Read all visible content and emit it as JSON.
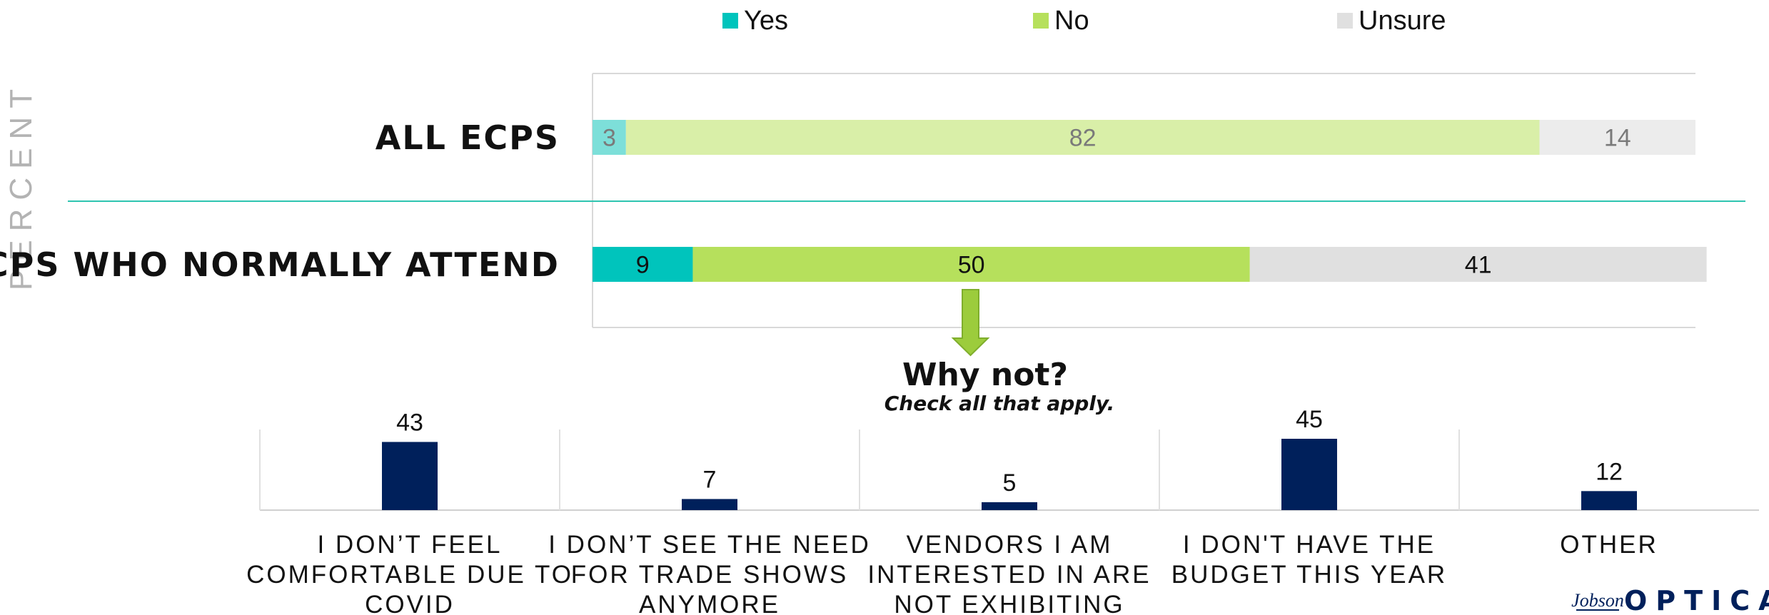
{
  "chart_data": [
    {
      "type": "bar",
      "orientation": "horizontal",
      "stacked": true,
      "axis_label": "PERCENT",
      "legend_position": "top",
      "categories": [
        "ALL ECPS",
        "ECPS WHO NORMALLY ATTEND"
      ],
      "series": [
        {
          "name": "Yes",
          "values": [
            3,
            9
          ]
        },
        {
          "name": "No",
          "values": [
            82,
            50
          ]
        },
        {
          "name": "Unsure",
          "values": [
            14,
            41
          ]
        }
      ]
    },
    {
      "type": "bar",
      "orientation": "vertical",
      "title": "Why not?",
      "subtitle": "Check all that apply.",
      "categories": [
        "I DON’T FEEL COMFORTABLE DUE TO COVID",
        "I DON’T SEE THE NEED FOR TRADE SHOWS ANYMORE",
        "VENDORS I AM INTERESTED IN ARE NOT EXHIBITING",
        "I DON'T HAVE THE BUDGET THIS YEAR",
        "OTHER"
      ],
      "category_lines": [
        [
          "I DON’T FEEL",
          "COMFORTABLE DUE TO",
          "COVID"
        ],
        [
          "I DON’T SEE THE NEED",
          "FOR TRADE SHOWS",
          "ANYMORE"
        ],
        [
          "VENDORS I AM",
          "INTERESTED IN ARE",
          "NOT EXHIBITING"
        ],
        [
          "I DON'T HAVE THE",
          "BUDGET THIS YEAR"
        ],
        [
          "OTHER"
        ]
      ],
      "values": [
        43,
        7,
        5,
        45,
        12
      ]
    }
  ],
  "colors": {
    "yes": "#00c4bc",
    "no": "#b6e05c",
    "unsure": "#e0e0e0",
    "yes_faded": "#7ddfd9",
    "no_faded": "#d9efa8",
    "unsure_faded": "#ececec",
    "divider": "#2ec4b0",
    "reason_bar": "#00205b",
    "arrow": "#9ccc3c"
  },
  "logo": {
    "script": "Jobson",
    "main": "OPTICAL"
  }
}
